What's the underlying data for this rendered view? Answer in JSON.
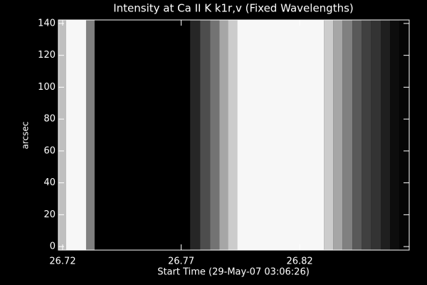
{
  "chart_data": {
    "type": "image",
    "title": "Intensity at Ca II K k1r,v (Fixed Wavelengths)",
    "xlabel": "Start Time (29-May-07 03:06:26)",
    "ylabel": "arcsec",
    "bin_edges": [
      26.7182,
      26.7215,
      26.7299,
      26.7335,
      26.7738,
      26.778,
      26.7822,
      26.7861,
      26.7897,
      26.7936,
      26.8302,
      26.8341,
      26.838,
      26.8422,
      26.8461,
      26.85,
      26.8542,
      26.8581,
      26.862,
      26.8662
    ],
    "values": [
      0.75,
      0.97,
      0.5,
      0,
      0.15,
      0.3,
      0.45,
      0.65,
      0.8,
      0.97,
      0.8,
      0.65,
      0.5,
      0.35,
      0.25,
      0.2,
      0.12,
      0.05,
      0.02
    ],
    "xlim": [
      26.7182,
      26.8662
    ],
    "xticks": [
      26.72,
      26.77,
      26.82
    ],
    "ylim": [
      -2.2,
      142.2
    ],
    "yticks": [
      0,
      20,
      40,
      60,
      80,
      100,
      120,
      140
    ]
  }
}
